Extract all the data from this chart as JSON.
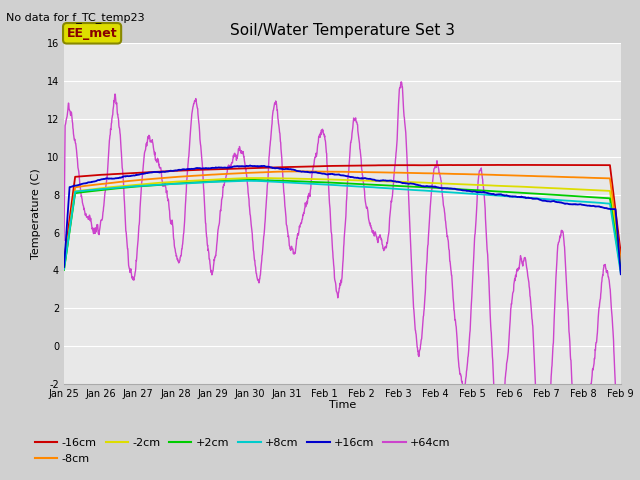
{
  "title": "Soil/Water Temperature Set 3",
  "subtitle": "No data for f_TC_temp23",
  "ylabel": "Temperature (C)",
  "xlabel": "Time",
  "plot_bg": "#e8e8e8",
  "fig_bg": "#d0d0d0",
  "ylim": [
    -2,
    16
  ],
  "yticks": [
    -2,
    0,
    2,
    4,
    6,
    8,
    10,
    12,
    14,
    16
  ],
  "xtick_labels": [
    "Jan 25",
    "Jan 26",
    "Jan 27",
    "Jan 28",
    "Jan 29",
    "Jan 30",
    "Jan 31",
    "Feb 1",
    "Feb 2",
    "Feb 3",
    "Feb 4",
    "Feb 5",
    "Feb 6",
    "Feb 7",
    "Feb 8",
    "Feb 9"
  ],
  "series_colors": {
    "-16cm": "#cc0000",
    "-8cm": "#ff8800",
    "-2cm": "#dddd00",
    "+2cm": "#00cc00",
    "+8cm": "#00cccc",
    "+16cm": "#0000cc",
    "+64cm": "#cc44cc"
  },
  "legend_label": "EE_met",
  "legend_box_color": "#dddd00",
  "legend_text_color": "#880000",
  "legend_box_edge": "#888800",
  "grid_color": "#ffffff",
  "title_fontsize": 11,
  "subtitle_fontsize": 8,
  "axis_fontsize": 8,
  "tick_fontsize": 7
}
